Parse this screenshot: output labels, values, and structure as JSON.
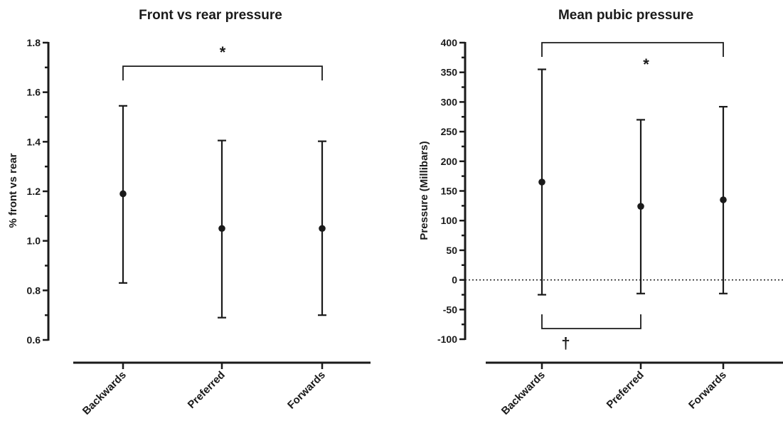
{
  "chart_data": [
    {
      "type": "scatter",
      "title": "Front vs rear pressure",
      "xlabel": "",
      "ylabel": "% front vs rear",
      "categories": [
        "Backwards",
        "Preferred",
        "Forwards"
      ],
      "series": [
        {
          "values": [
            1.19,
            1.05,
            1.05
          ],
          "error_low": [
            0.83,
            0.69,
            0.7
          ],
          "error_high": [
            1.545,
            1.405,
            1.402
          ]
        }
      ],
      "ylim": [
        0.6,
        1.8
      ],
      "yticks": [
        "0.6",
        "0.8",
        "1.0",
        "1.2",
        "1.4",
        "1.6",
        "1.8"
      ],
      "reference_line": null,
      "annotations": [
        {
          "text": "*",
          "from_category": "Backwards",
          "to_category": "Forwards",
          "level": 1.705,
          "direction": "down"
        }
      ]
    },
    {
      "type": "scatter",
      "title": "Mean pubic pressure",
      "xlabel": "",
      "ylabel": "Pressure (Millibars)",
      "categories": [
        "Backwards",
        "Preferred",
        "Forwards"
      ],
      "series": [
        {
          "values": [
            165,
            124,
            135
          ],
          "error_low": [
            -25,
            -23,
            -23
          ],
          "error_high": [
            355,
            270,
            292
          ]
        }
      ],
      "ylim": [
        -100,
        400
      ],
      "yticks": [
        "-100",
        "-50",
        "0",
        "50",
        "100",
        "150",
        "200",
        "250",
        "300",
        "350",
        "400"
      ],
      "reference_line": 0,
      "annotations": [
        {
          "text": "*",
          "from_category": "Backwards",
          "to_category": "Forwards",
          "level": 400,
          "direction": "down"
        },
        {
          "text": "†",
          "from_category": "Backwards",
          "to_category": "Preferred",
          "level": -82,
          "direction": "up"
        }
      ]
    }
  ]
}
